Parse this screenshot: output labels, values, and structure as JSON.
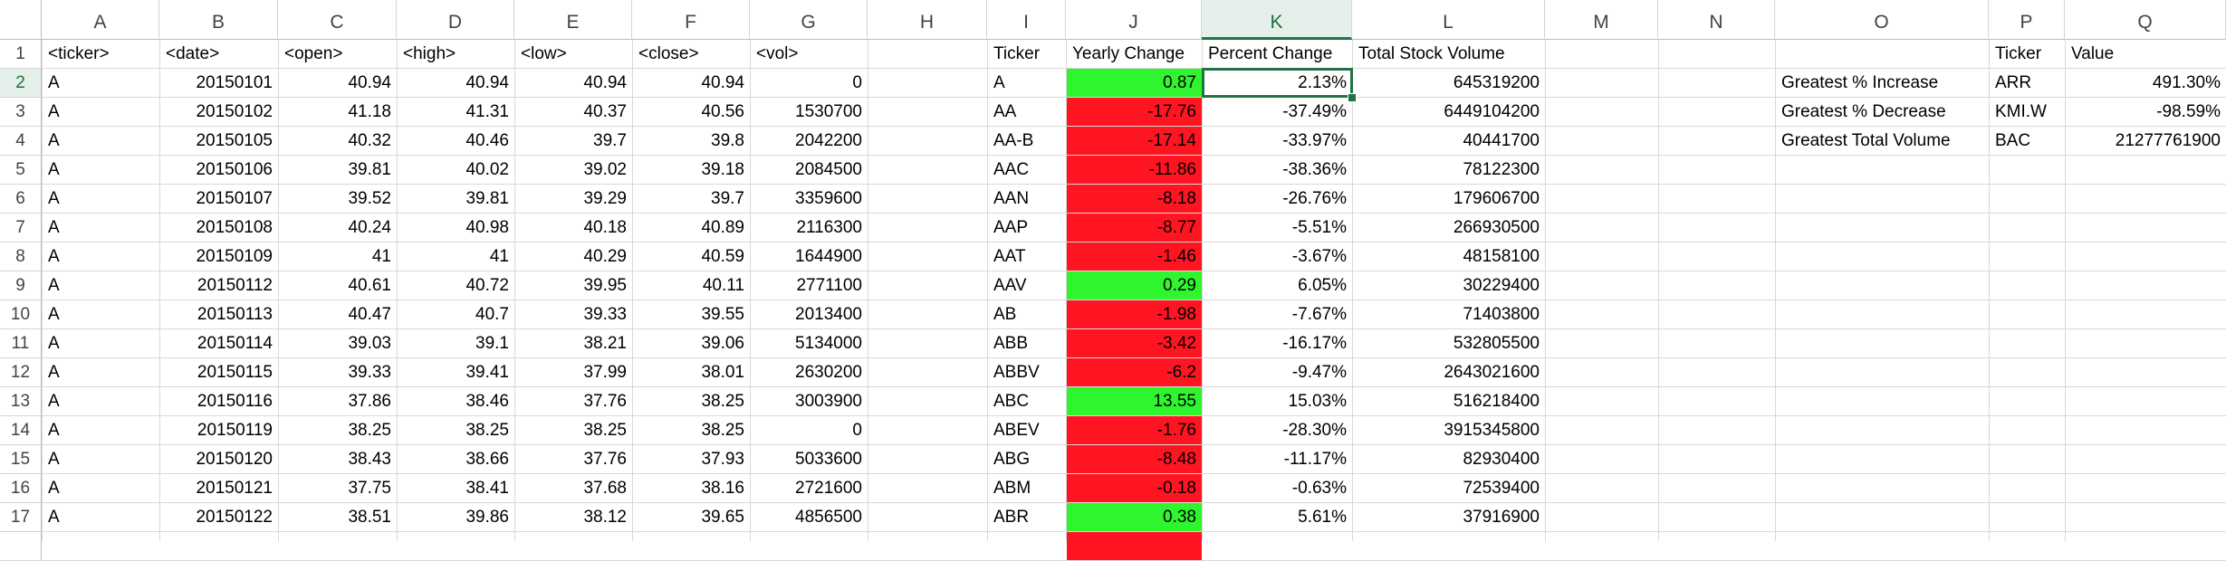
{
  "columns": [
    "A",
    "B",
    "C",
    "D",
    "E",
    "F",
    "G",
    "H",
    "I",
    "J",
    "K",
    "L",
    "M",
    "N",
    "O",
    "P",
    "Q"
  ],
  "rows": [
    "1",
    "2",
    "3",
    "4",
    "5",
    "6",
    "7",
    "8",
    "9",
    "10",
    "11",
    "12",
    "13",
    "14",
    "15",
    "16",
    "17"
  ],
  "raw_headers": [
    "<ticker>",
    "<date>",
    "<open>",
    "<high>",
    "<low>",
    "<close>",
    "<vol>"
  ],
  "raw_rows": [
    [
      "A",
      "20150101",
      "40.94",
      "40.94",
      "40.94",
      "40.94",
      "0"
    ],
    [
      "A",
      "20150102",
      "41.18",
      "41.31",
      "40.37",
      "40.56",
      "1530700"
    ],
    [
      "A",
      "20150105",
      "40.32",
      "40.46",
      "39.7",
      "39.8",
      "2042200"
    ],
    [
      "A",
      "20150106",
      "39.81",
      "40.02",
      "39.02",
      "39.18",
      "2084500"
    ],
    [
      "A",
      "20150107",
      "39.52",
      "39.81",
      "39.29",
      "39.7",
      "3359600"
    ],
    [
      "A",
      "20150108",
      "40.24",
      "40.98",
      "40.18",
      "40.89",
      "2116300"
    ],
    [
      "A",
      "20150109",
      "41",
      "41",
      "40.29",
      "40.59",
      "1644900"
    ],
    [
      "A",
      "20150112",
      "40.61",
      "40.72",
      "39.95",
      "40.11",
      "2771100"
    ],
    [
      "A",
      "20150113",
      "40.47",
      "40.7",
      "39.33",
      "39.55",
      "2013400"
    ],
    [
      "A",
      "20150114",
      "39.03",
      "39.1",
      "38.21",
      "39.06",
      "5134000"
    ],
    [
      "A",
      "20150115",
      "39.33",
      "39.41",
      "37.99",
      "38.01",
      "2630200"
    ],
    [
      "A",
      "20150116",
      "37.86",
      "38.46",
      "37.76",
      "38.25",
      "3003900"
    ],
    [
      "A",
      "20150119",
      "38.25",
      "38.25",
      "38.25",
      "38.25",
      "0"
    ],
    [
      "A",
      "20150120",
      "38.43",
      "38.66",
      "37.76",
      "37.93",
      "5033600"
    ],
    [
      "A",
      "20150121",
      "37.75",
      "38.41",
      "37.68",
      "38.16",
      "2721600"
    ],
    [
      "A",
      "20150122",
      "38.51",
      "39.86",
      "38.12",
      "39.65",
      "4856500"
    ]
  ],
  "summary_headers": [
    "Ticker",
    "Yearly Change",
    "Percent Change",
    "Total Stock Volume"
  ],
  "summary_rows": [
    {
      "ticker": "A",
      "change": "0.87",
      "pct": "2.13%",
      "volume": "645319200",
      "status": "positive"
    },
    {
      "ticker": "AA",
      "change": "-17.76",
      "pct": "-37.49%",
      "volume": "6449104200",
      "status": "negative"
    },
    {
      "ticker": "AA-B",
      "change": "-17.14",
      "pct": "-33.97%",
      "volume": "40441700",
      "status": "negative"
    },
    {
      "ticker": "AAC",
      "change": "-11.86",
      "pct": "-38.36%",
      "volume": "78122300",
      "status": "negative"
    },
    {
      "ticker": "AAN",
      "change": "-8.18",
      "pct": "-26.76%",
      "volume": "179606700",
      "status": "negative"
    },
    {
      "ticker": "AAP",
      "change": "-8.77",
      "pct": "-5.51%",
      "volume": "266930500",
      "status": "negative"
    },
    {
      "ticker": "AAT",
      "change": "-1.46",
      "pct": "-3.67%",
      "volume": "48158100",
      "status": "negative"
    },
    {
      "ticker": "AAV",
      "change": "0.29",
      "pct": "6.05%",
      "volume": "30229400",
      "status": "positive"
    },
    {
      "ticker": "AB",
      "change": "-1.98",
      "pct": "-7.67%",
      "volume": "71403800",
      "status": "negative"
    },
    {
      "ticker": "ABB",
      "change": "-3.42",
      "pct": "-16.17%",
      "volume": "532805500",
      "status": "negative"
    },
    {
      "ticker": "ABBV",
      "change": "-6.2",
      "pct": "-9.47%",
      "volume": "2643021600",
      "status": "negative"
    },
    {
      "ticker": "ABC",
      "change": "13.55",
      "pct": "15.03%",
      "volume": "516218400",
      "status": "positive"
    },
    {
      "ticker": "ABEV",
      "change": "-1.76",
      "pct": "-28.30%",
      "volume": "3915345800",
      "status": "negative"
    },
    {
      "ticker": "ABG",
      "change": "-8.48",
      "pct": "-11.17%",
      "volume": "82930400",
      "status": "negative"
    },
    {
      "ticker": "ABM",
      "change": "-0.18",
      "pct": "-0.63%",
      "volume": "72539400",
      "status": "negative"
    },
    {
      "ticker": "ABR",
      "change": "0.38",
      "pct": "5.61%",
      "volume": "37916900",
      "status": "positive"
    }
  ],
  "greatest_headers": [
    "Ticker",
    "Value"
  ],
  "greatest_rows": [
    {
      "label": "Greatest % Increase",
      "ticker": "ARR",
      "value": "491.30%"
    },
    {
      "label": "Greatest % Decrease",
      "ticker": "KMI.W",
      "value": "-98.59%"
    },
    {
      "label": "Greatest Total Volume",
      "ticker": "BAC",
      "value": "21277761900"
    }
  ],
  "selection": {
    "column": "K",
    "row": "2"
  },
  "colors": {
    "positive": "#2ff52f",
    "negative": "#ff1522",
    "selection": "#217346"
  }
}
